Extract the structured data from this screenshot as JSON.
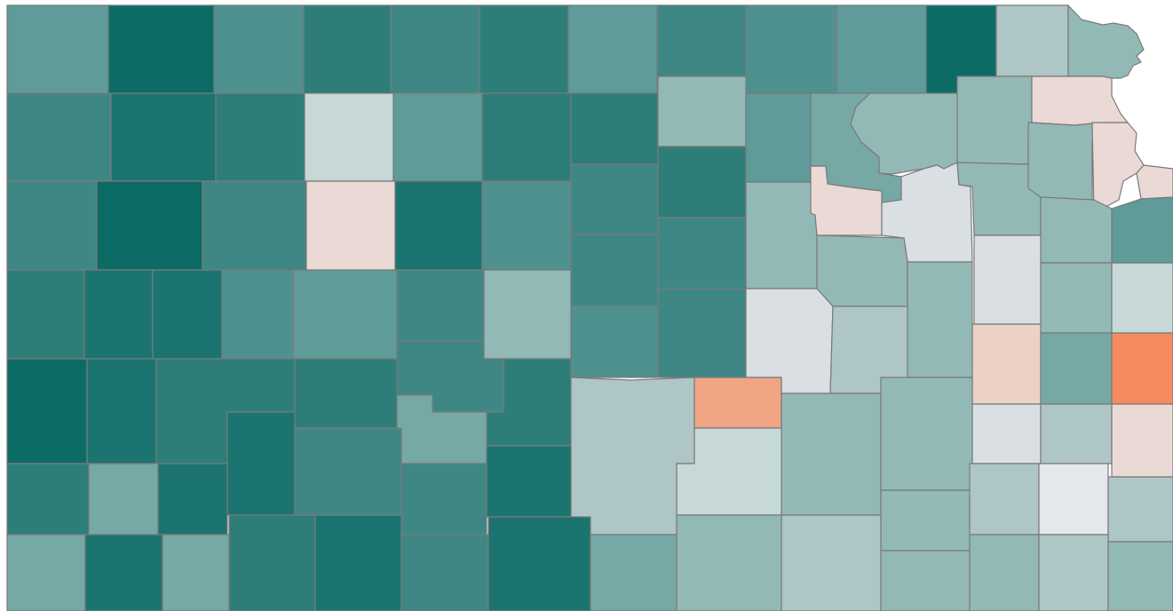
{
  "map": {
    "type": "choropleth",
    "region": "Kansas counties",
    "palette": {
      "very_dark_teal": "#0d6b66",
      "dark_teal": "#1c7470",
      "medium_dark_teal": "#2d7e79",
      "medium_teal": "#3f8784",
      "teal": "#4f918e",
      "light_teal": "#5f9b98",
      "pale_teal": "#76a9a6",
      "very_pale_teal": "#93b9b6",
      "blue_gray": "#aec6c5",
      "light_gray": "#d9dfe2",
      "pale_pink": "#ead9d4",
      "light_peach": "#ecd2c4",
      "salmon": "#f0a584",
      "orange": "#f78b5f",
      "background": "#ffffff",
      "border": "#7a7a7a"
    },
    "counties": [
      {
        "id": "c01",
        "fill": "#5f9b98"
      },
      {
        "id": "c02",
        "fill": "#0d6b66"
      },
      {
        "id": "c03",
        "fill": "#4f918e"
      },
      {
        "id": "c04",
        "fill": "#2d7e79"
      },
      {
        "id": "c05",
        "fill": "#3f8784"
      },
      {
        "id": "c06",
        "fill": "#2d7e79"
      },
      {
        "id": "c07",
        "fill": "#5f9b98"
      },
      {
        "id": "c08",
        "fill": "#3f8784"
      },
      {
        "id": "c09",
        "fill": "#4f918e"
      },
      {
        "id": "c10",
        "fill": "#5f9b98"
      },
      {
        "id": "c11",
        "fill": "#0d6b66"
      },
      {
        "id": "c12",
        "fill": "#aec6c5"
      },
      {
        "id": "c13",
        "fill": "#93b9b6"
      },
      {
        "id": "c14",
        "fill": "#3f8784"
      },
      {
        "id": "c15",
        "fill": "#1c7470"
      },
      {
        "id": "c16",
        "fill": "#2d7e79"
      },
      {
        "id": "c17",
        "fill": "#c6d8d8"
      },
      {
        "id": "c18",
        "fill": "#5f9b98"
      },
      {
        "id": "c19",
        "fill": "#2d7e79"
      },
      {
        "id": "c20",
        "fill": "#2d7e79"
      },
      {
        "id": "c21",
        "fill": "#93b9b6"
      },
      {
        "id": "c22",
        "fill": "#5f9b98"
      },
      {
        "id": "c23",
        "fill": "#76a9a6"
      },
      {
        "id": "c24",
        "fill": "#93b9b6"
      },
      {
        "id": "c25",
        "fill": "#ead9d4"
      },
      {
        "id": "c26",
        "fill": "#aec6c5"
      },
      {
        "id": "c27",
        "fill": "#3f8784"
      },
      {
        "id": "c28",
        "fill": "#0d6b66"
      },
      {
        "id": "c29",
        "fill": "#3f8784"
      },
      {
        "id": "c30",
        "fill": "#ead9d4"
      },
      {
        "id": "c31",
        "fill": "#1c7470"
      },
      {
        "id": "c32",
        "fill": "#4f918e"
      },
      {
        "id": "c33",
        "fill": "#3f8784"
      },
      {
        "id": "c34",
        "fill": "#2d7e79"
      },
      {
        "id": "c35",
        "fill": "#5f9b98"
      },
      {
        "id": "c36",
        "fill": "#93b9b6"
      },
      {
        "id": "c37",
        "fill": "#ead9d4"
      },
      {
        "id": "c38",
        "fill": "#d9dfe2"
      },
      {
        "id": "c39",
        "fill": "#93b9b6"
      },
      {
        "id": "c40",
        "fill": "#93b9b6"
      },
      {
        "id": "c41",
        "fill": "#ead9d4"
      },
      {
        "id": "c42",
        "fill": "#2d7e79"
      },
      {
        "id": "c43",
        "fill": "#1c7470"
      },
      {
        "id": "c44",
        "fill": "#1c7470"
      },
      {
        "id": "c45",
        "fill": "#4f918e"
      },
      {
        "id": "c46",
        "fill": "#5f9b98"
      },
      {
        "id": "c47",
        "fill": "#3f8784"
      },
      {
        "id": "c48",
        "fill": "#93b9b6"
      },
      {
        "id": "c49",
        "fill": "#3f8784"
      },
      {
        "id": "c50",
        "fill": "#76a9a6"
      },
      {
        "id": "c51",
        "fill": "#3f8784"
      },
      {
        "id": "c52",
        "fill": "#d9dfe2"
      },
      {
        "id": "c53",
        "fill": "#93b9b6"
      },
      {
        "id": "c54",
        "fill": "#d9dfe2"
      },
      {
        "id": "c55",
        "fill": "#93b9b6"
      },
      {
        "id": "c56",
        "fill": "#c6d8d8"
      },
      {
        "id": "c57",
        "fill": "#0d6b66"
      },
      {
        "id": "c58",
        "fill": "#1c7470"
      },
      {
        "id": "c59",
        "fill": "#2d7e79"
      },
      {
        "id": "c60",
        "fill": "#2d7e79"
      },
      {
        "id": "c61",
        "fill": "#3f8784"
      },
      {
        "id": "c62",
        "fill": "#2d7e79"
      },
      {
        "id": "c63",
        "fill": "#4f918e"
      },
      {
        "id": "c64",
        "fill": "#aec6c5"
      },
      {
        "id": "c65",
        "fill": "#aec6c5"
      },
      {
        "id": "c66",
        "fill": "#93b9b6"
      },
      {
        "id": "c67",
        "fill": "#ecd2c4"
      },
      {
        "id": "c68",
        "fill": "#76a9a6"
      },
      {
        "id": "c69",
        "fill": "#f78b5f"
      },
      {
        "id": "c70",
        "fill": "#f0a584"
      },
      {
        "id": "c71",
        "fill": "#93b9b6"
      },
      {
        "id": "c72",
        "fill": "#d9dfe2"
      },
      {
        "id": "c73",
        "fill": "#aec6c5"
      },
      {
        "id": "c74",
        "fill": "#ead9d4"
      },
      {
        "id": "c75",
        "fill": "#2d7e79"
      },
      {
        "id": "c76",
        "fill": "#76a9a6"
      },
      {
        "id": "c77",
        "fill": "#1c7470"
      },
      {
        "id": "c78",
        "fill": "#1c7470"
      },
      {
        "id": "c79",
        "fill": "#3f8784"
      },
      {
        "id": "c80",
        "fill": "#3f8784"
      },
      {
        "id": "c81",
        "fill": "#1c7470"
      },
      {
        "id": "c82",
        "fill": "#93b9b6"
      },
      {
        "id": "c83",
        "fill": "#c6d8d8"
      },
      {
        "id": "c84",
        "fill": "#93b9b6"
      },
      {
        "id": "c85",
        "fill": "#aec6c5"
      },
      {
        "id": "c86",
        "fill": "#e5e8ea"
      },
      {
        "id": "c87",
        "fill": "#aec6c5"
      },
      {
        "id": "c88",
        "fill": "#76a9a6"
      },
      {
        "id": "c89",
        "fill": "#1c7470"
      },
      {
        "id": "c90",
        "fill": "#76a9a6"
      },
      {
        "id": "c91",
        "fill": "#2d7e79"
      },
      {
        "id": "c92",
        "fill": "#1c7470"
      },
      {
        "id": "c93",
        "fill": "#3f8784"
      },
      {
        "id": "c94",
        "fill": "#1c7470"
      },
      {
        "id": "c95",
        "fill": "#76a9a6"
      },
      {
        "id": "c96",
        "fill": "#93b9b6"
      },
      {
        "id": "c97",
        "fill": "#aec6c5"
      },
      {
        "id": "c98",
        "fill": "#93b9b6"
      },
      {
        "id": "c99",
        "fill": "#93b9b6"
      },
      {
        "id": "c100",
        "fill": "#aec6c5"
      },
      {
        "id": "c101",
        "fill": "#93b9b6"
      },
      {
        "id": "c102",
        "fill": "#93b9b6"
      },
      {
        "id": "c103",
        "fill": "#2d7e79"
      }
    ]
  }
}
